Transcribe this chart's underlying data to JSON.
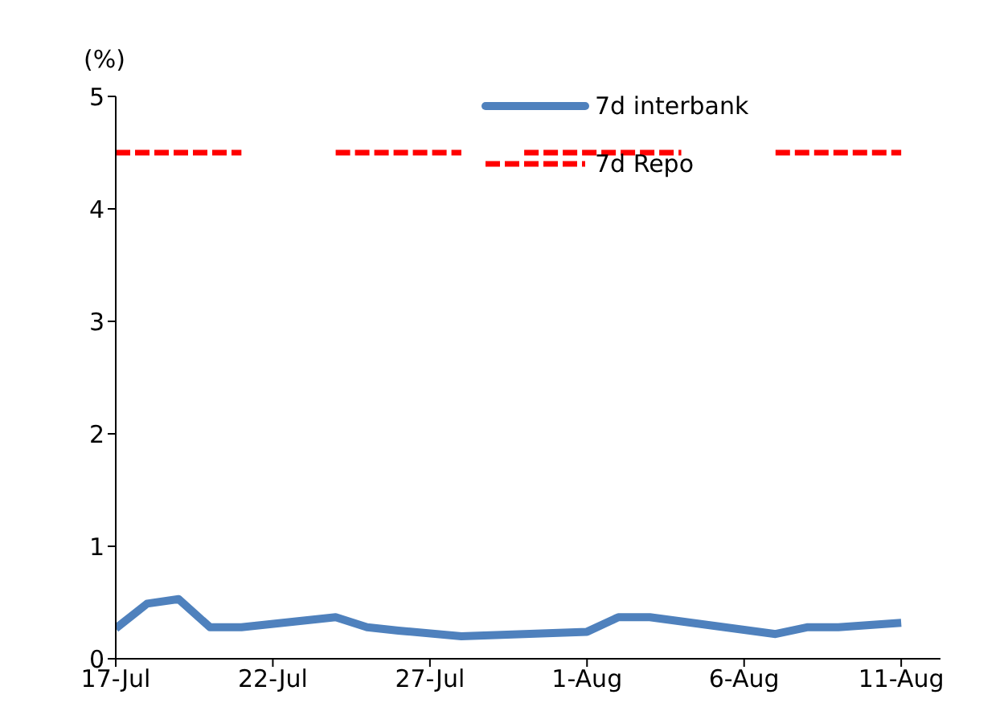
{
  "chart_data": {
    "type": "line",
    "ylabel": "(%)",
    "legend": "top",
    "xlim": [
      "--07-17",
      "--08-12T06:00"
    ],
    "xticks": [
      {
        "value": "--07-17",
        "label": "17-Jul"
      },
      {
        "value": "--07-22",
        "label": "22-Jul"
      },
      {
        "value": "--07-27",
        "label": "27-Jul"
      },
      {
        "value": "--08-01",
        "label": "1-Aug"
      },
      {
        "value": "--08-06",
        "label": "6-Aug"
      },
      {
        "value": "--08-11",
        "label": "11-Aug"
      }
    ],
    "ylim": [
      0,
      5
    ],
    "yticks": [
      0,
      1,
      2,
      3,
      4,
      5
    ],
    "grid": false,
    "series": [
      {
        "name": "7d interbank",
        "color": "#4f81bd",
        "line_style": "solid",
        "x": [
          "--07-17",
          "--07-18",
          "--07-19",
          "--07-20",
          "--07-21",
          "--07-24",
          "--07-25",
          "--07-26",
          "--07-28",
          "--08-01",
          "--08-02",
          "--08-03",
          "--08-07",
          "--08-08",
          "--08-09",
          "--08-10",
          "--08-11"
        ],
        "values": [
          0.27,
          0.49,
          0.53,
          0.28,
          0.28,
          0.37,
          0.28,
          0.25,
          0.2,
          0.24,
          0.37,
          0.37,
          0.22,
          0.28,
          0.28,
          0.3,
          0.32
        ]
      },
      {
        "name": "7d Repo",
        "color": "#ff0000",
        "line_style": "dashed",
        "x": [
          "--07-17",
          "--07-21",
          "--07-22",
          "--07-24",
          "--07-28",
          "--07-29",
          "--07-30",
          "--08-04",
          "--08-05",
          "--08-07",
          "--08-11"
        ],
        "values": [
          4.5,
          4.5,
          null,
          4.5,
          4.5,
          null,
          4.5,
          4.5,
          null,
          4.5,
          4.5
        ]
      }
    ]
  }
}
